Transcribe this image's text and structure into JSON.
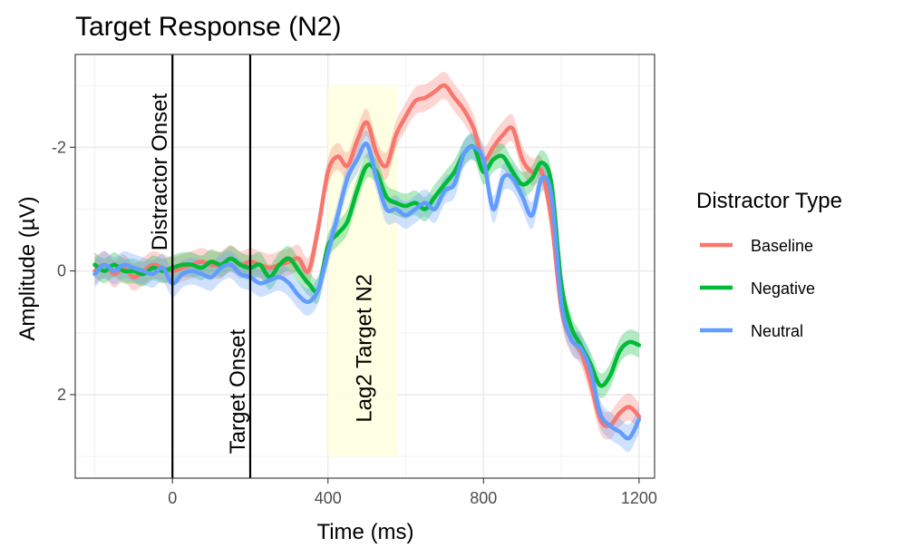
{
  "chart_data": {
    "type": "line",
    "title": "Target Response (N2)",
    "xlabel": "Time (ms)",
    "ylabel": "Amplitude (µV)",
    "xlim": [
      -250,
      1240
    ],
    "ylim": [
      -3.5,
      3.35
    ],
    "y_reversed": true,
    "x_ticks": [
      0,
      400,
      800,
      1200
    ],
    "x_tick_labels": [
      "0",
      "400",
      "800",
      "1200"
    ],
    "y_ticks": [
      -2,
      0,
      2
    ],
    "y_tick_labels": [
      "-2",
      "0",
      "2"
    ],
    "grid": true,
    "legend": {
      "title": "Distractor Type",
      "position": "right"
    },
    "x": [
      -200,
      -175,
      -150,
      -125,
      -100,
      -75,
      -50,
      -25,
      0,
      25,
      50,
      75,
      100,
      125,
      150,
      175,
      200,
      225,
      250,
      275,
      300,
      325,
      350,
      375,
      400,
      425,
      450,
      475,
      500,
      525,
      550,
      575,
      600,
      625,
      650,
      675,
      700,
      725,
      750,
      775,
      800,
      825,
      850,
      875,
      900,
      925,
      950,
      975,
      1000,
      1025,
      1050,
      1075,
      1100,
      1125,
      1150,
      1175,
      1200
    ],
    "series": [
      {
        "name": "Baseline",
        "color": "#F8766D",
        "values": [
          0.0,
          -0.1,
          0.05,
          -0.05,
          0.1,
          0.0,
          -0.1,
          -0.05,
          0.0,
          -0.05,
          -0.1,
          -0.15,
          -0.1,
          -0.1,
          -0.2,
          -0.1,
          -0.15,
          -0.1,
          -0.05,
          -0.1,
          -0.15,
          -0.2,
          0.0,
          -0.7,
          -1.6,
          -1.85,
          -1.7,
          -2.1,
          -2.4,
          -1.9,
          -1.7,
          -2.2,
          -2.5,
          -2.75,
          -2.8,
          -2.9,
          -3.0,
          -2.8,
          -2.6,
          -2.3,
          -1.8,
          -2.0,
          -2.2,
          -2.3,
          -1.8,
          -1.6,
          -1.6,
          -0.8,
          0.6,
          1.1,
          1.3,
          1.8,
          2.4,
          2.5,
          2.3,
          2.2,
          2.35
        ],
        "band_width": 0.22
      },
      {
        "name": "Negative",
        "color": "#00BA38",
        "values": [
          -0.1,
          0.0,
          -0.1,
          0.0,
          0.0,
          0.05,
          -0.05,
          0.0,
          -0.05,
          -0.1,
          -0.1,
          -0.05,
          -0.15,
          -0.1,
          -0.2,
          -0.1,
          -0.05,
          -0.1,
          0.1,
          -0.1,
          -0.2,
          0.0,
          0.2,
          0.3,
          -0.4,
          -0.6,
          -0.8,
          -1.3,
          -1.7,
          -1.6,
          -1.2,
          -1.1,
          -1.05,
          -1.1,
          -1.0,
          -1.2,
          -1.4,
          -1.6,
          -1.9,
          -2.0,
          -1.6,
          -1.8,
          -1.85,
          -1.6,
          -1.4,
          -1.5,
          -1.75,
          -1.4,
          0.2,
          0.9,
          1.2,
          1.5,
          1.85,
          1.7,
          1.3,
          1.15,
          1.2
        ],
        "band_width": 0.2
      },
      {
        "name": "Neutral",
        "color": "#619CFF",
        "values": [
          0.05,
          -0.1,
          0.0,
          -0.1,
          -0.05,
          0.0,
          0.05,
          -0.05,
          0.2,
          0.05,
          0.0,
          0.05,
          0.1,
          -0.05,
          -0.1,
          0.05,
          0.1,
          0.2,
          0.15,
          0.1,
          0.2,
          0.4,
          0.5,
          0.3,
          -0.3,
          -0.9,
          -1.5,
          -1.8,
          -2.05,
          -1.5,
          -1.0,
          -1.0,
          -0.9,
          -1.0,
          -1.1,
          -1.0,
          -1.3,
          -1.4,
          -1.9,
          -2.0,
          -1.8,
          -1.0,
          -1.5,
          -1.5,
          -1.2,
          -0.9,
          -1.5,
          -1.2,
          0.5,
          1.1,
          1.25,
          1.6,
          2.3,
          2.5,
          2.6,
          2.7,
          2.4
        ],
        "band_width": 0.22
      }
    ],
    "vlines": [
      {
        "x": 0,
        "label": "Distractor Onset",
        "label_y": -1.6
      },
      {
        "x": 200,
        "label": "Target Onset",
        "label_y": 1.95
      }
    ],
    "shaded_region": {
      "x0": 400,
      "x1": 580,
      "y0": -3.0,
      "y1": 3.0,
      "color": "#FFFFE0",
      "label": "Lag2 Target N2",
      "label_y": 1.25
    }
  }
}
